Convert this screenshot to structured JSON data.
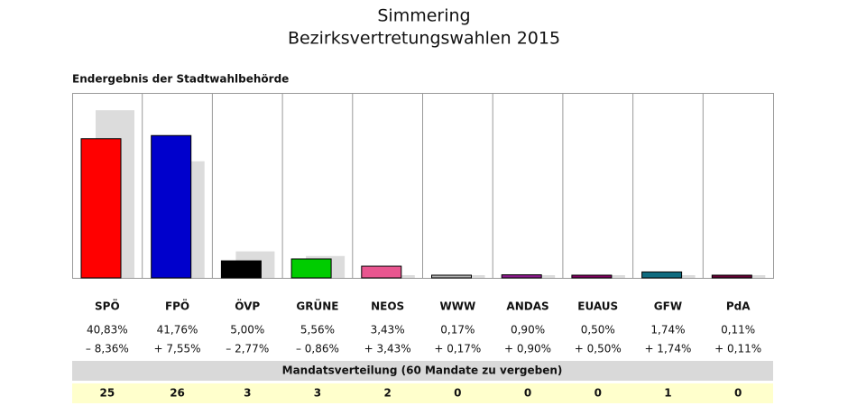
{
  "chart_data": {
    "type": "bar",
    "title": "Simmering",
    "subtitle": "Bezirksvertretungswahlen 2015",
    "caption": "Endergebnis der Stadtwahlbehörde",
    "categories": [
      "SPÖ",
      "FPÖ",
      "ÖVP",
      "GRÜNE",
      "NEOS",
      "WWW",
      "ANDAS",
      "EUAUS",
      "GFW",
      "PdA"
    ],
    "values": [
      40.83,
      41.76,
      5.0,
      5.56,
      3.43,
      0.17,
      0.9,
      0.5,
      1.74,
      0.11
    ],
    "value_labels": [
      "40,83%",
      "41,76%",
      "5,00%",
      "5,56%",
      "3,43%",
      "0,17%",
      "0,90%",
      "0,50%",
      "1,74%",
      "0,11%"
    ],
    "colors": [
      "#ff0000",
      "#0000cc",
      "#000000",
      "#00cc00",
      "#e8558f",
      "#b0b0b0",
      "#8b1a8b",
      "#800060",
      "#0f6b7f",
      "#660033"
    ],
    "previous_values": [
      49.19,
      34.21,
      7.77,
      6.42,
      0,
      0,
      0,
      0,
      0,
      0
    ],
    "previous_color": "#dcdcdc",
    "changes": [
      -8.36,
      7.55,
      -2.77,
      -0.86,
      3.43,
      0.17,
      0.9,
      0.5,
      1.74,
      0.11
    ],
    "change_labels": [
      "– 8,36%",
      "+ 7,55%",
      "– 2,77%",
      "– 0,86%",
      "+ 3,43%",
      "+ 0,17%",
      "+ 0,90%",
      "+ 0,50%",
      "+ 1,74%",
      "+ 0,11%"
    ],
    "seats_title": "Mandatsverteilung (60 Mandate zu vergeben)",
    "seats": [
      25,
      26,
      3,
      3,
      2,
      0,
      0,
      0,
      1,
      0
    ],
    "ylim": [
      0,
      54
    ]
  }
}
